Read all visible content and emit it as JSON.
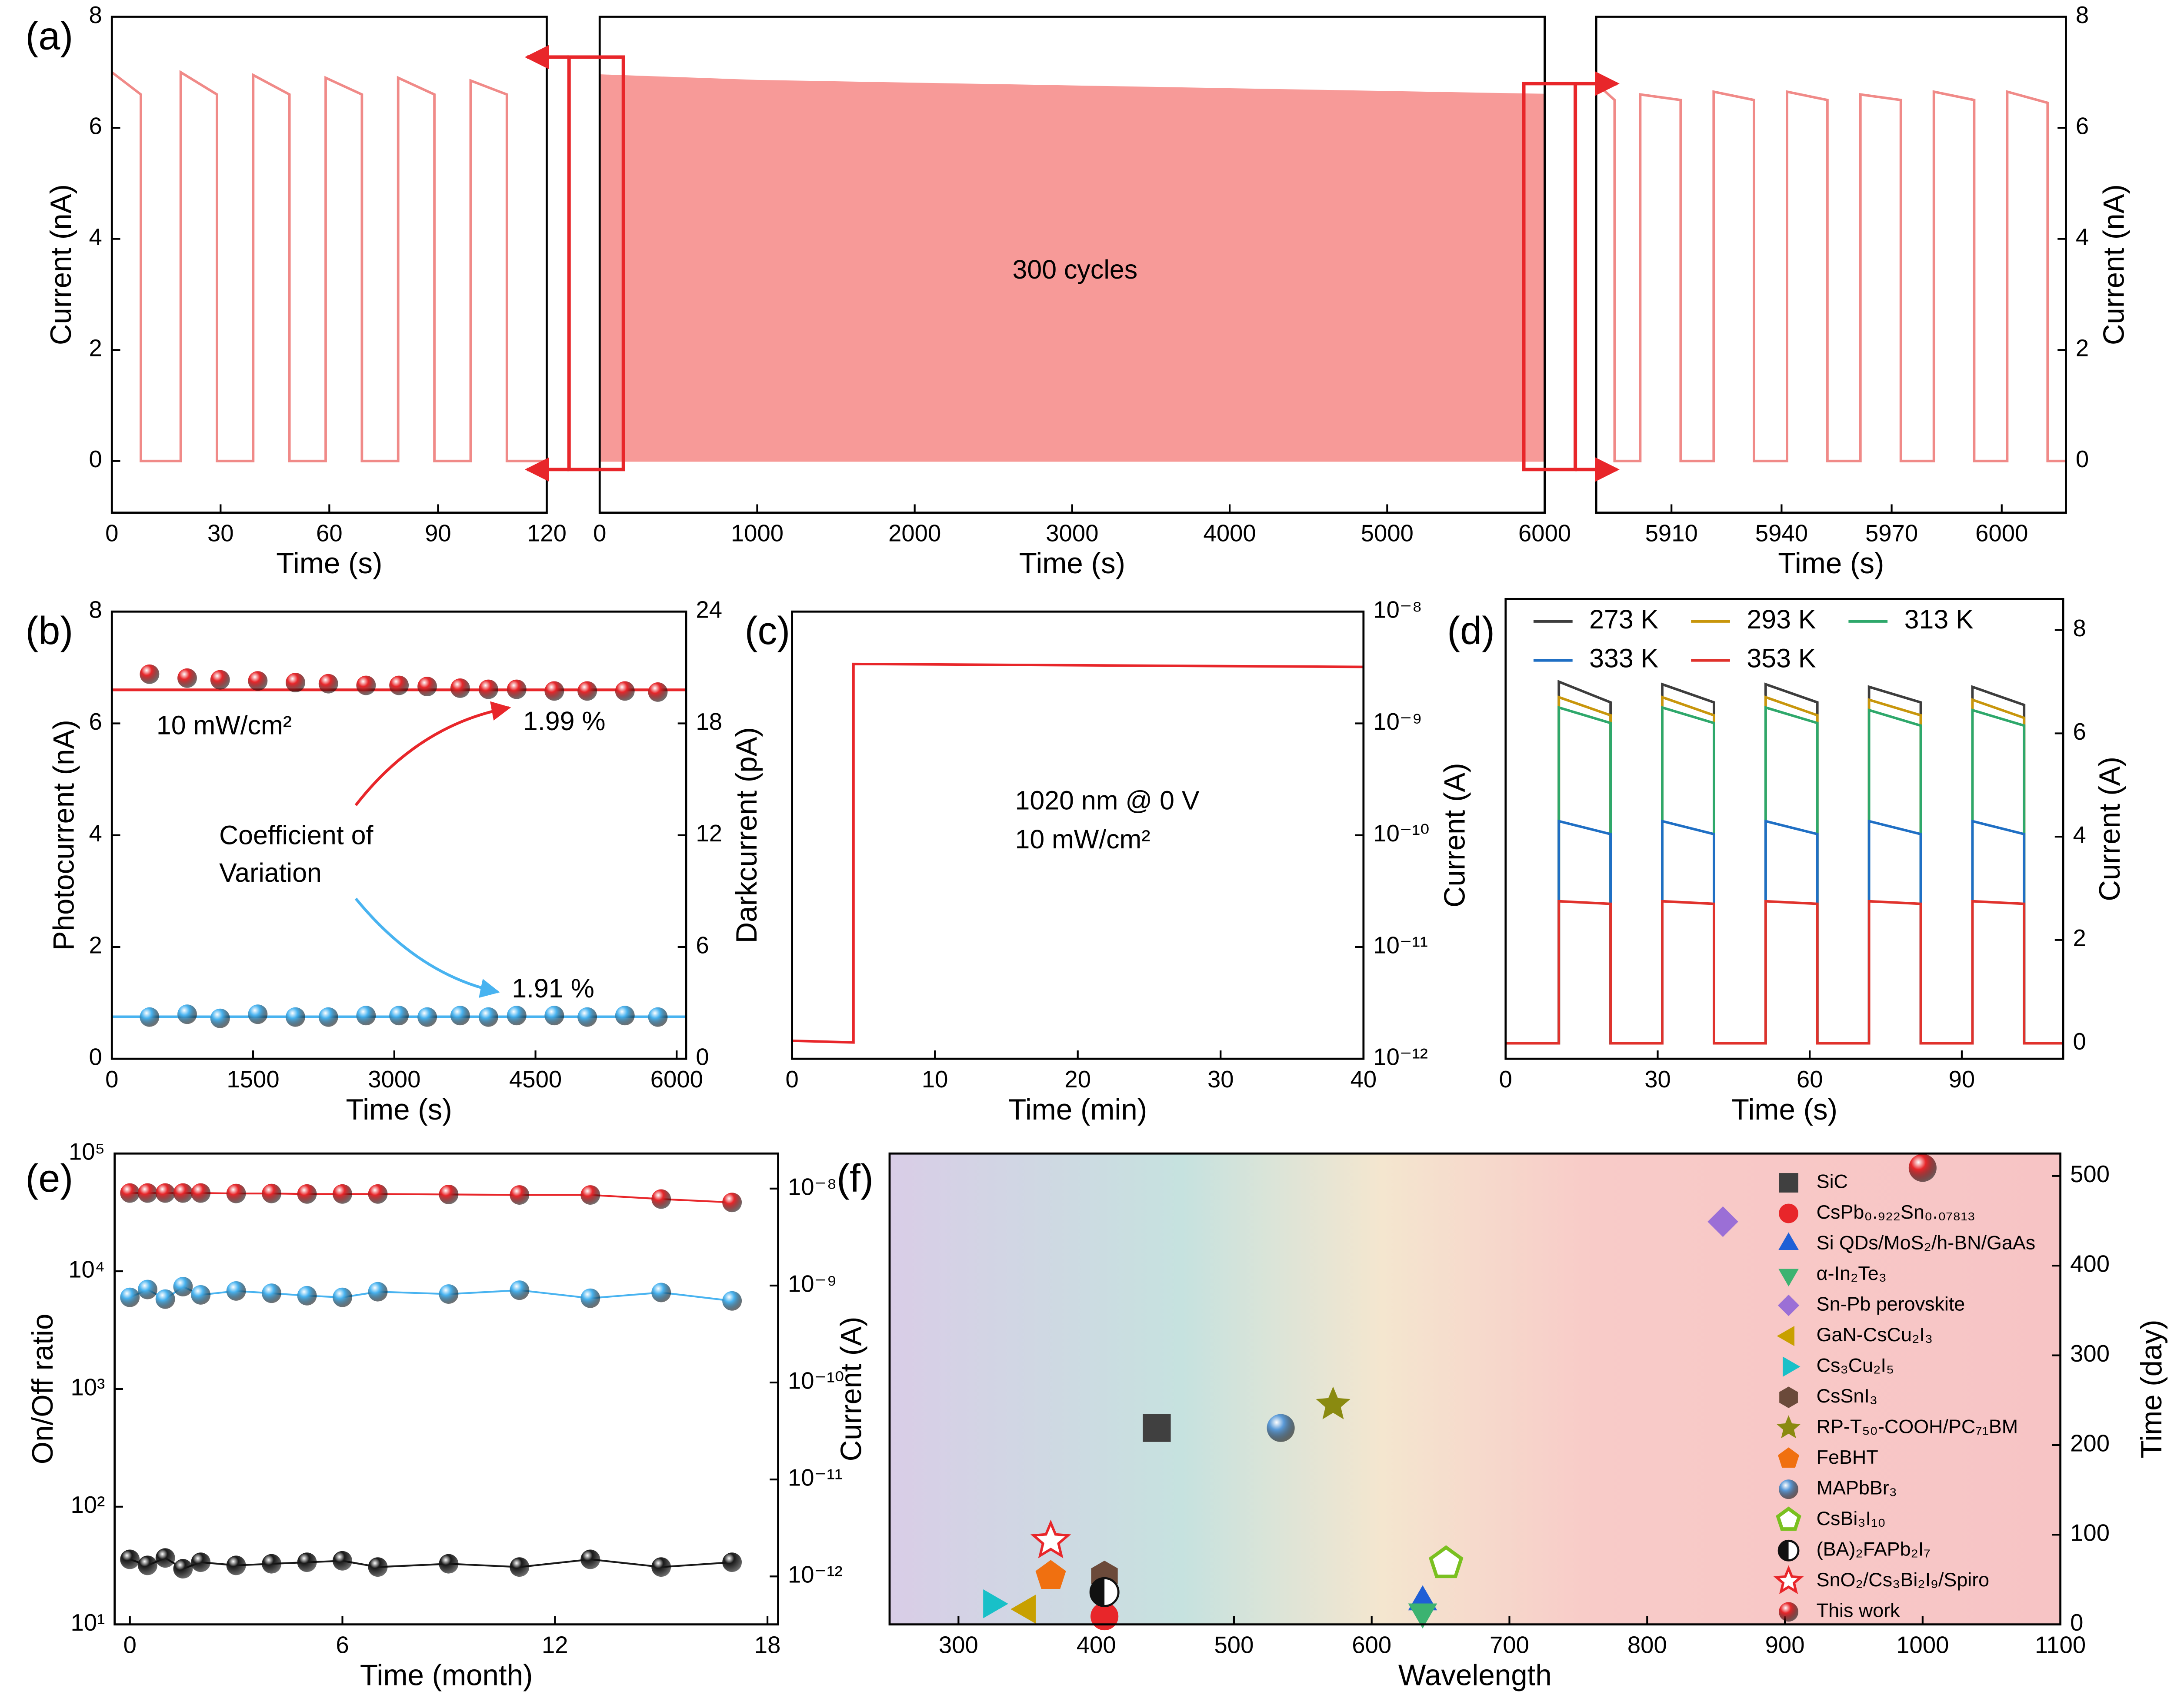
{
  "chart_data": [
    {
      "type": "line",
      "label": "(a)",
      "xlabel": "Time (s)",
      "ylabel": "Current (nA)",
      "yside": "left",
      "x": [
        0,
        8,
        8,
        19,
        19,
        29,
        29,
        39,
        39,
        49,
        49,
        59,
        59,
        69,
        69,
        79,
        79,
        89,
        89,
        99,
        99,
        109,
        109,
        120
      ],
      "series": [
        {
          "color": "#f08a88",
          "values": [
            7.0,
            6.6,
            0,
            0,
            7.0,
            6.6,
            0,
            0,
            6.95,
            6.6,
            0,
            0,
            6.9,
            6.6,
            0,
            0,
            6.9,
            6.6,
            0,
            0,
            6.85,
            6.6,
            0,
            0
          ]
        }
      ],
      "xlim": [
        0,
        120
      ],
      "ylim": [
        -0.93,
        8
      ],
      "xticks": [
        0,
        30,
        60,
        90,
        120
      ],
      "yticks": [
        0,
        2,
        4,
        6,
        8
      ]
    },
    {
      "type": "area",
      "xlabel": "Time (s)",
      "annotations": [
        {
          "text": "300 cycles"
        }
      ],
      "x": [
        0,
        1000,
        2000,
        3000,
        4000,
        5000,
        6000
      ],
      "series": [
        {
          "color": "#f79a98",
          "values": [
            6.95,
            6.85,
            6.8,
            6.75,
            6.7,
            6.65,
            6.6
          ]
        }
      ],
      "xlim": [
        0,
        6000
      ],
      "ylim": [
        -0.93,
        8
      ],
      "xticks": [
        0,
        1000,
        2000,
        3000,
        4000,
        5000,
        6000
      ]
    },
    {
      "type": "line",
      "xlabel": "Time (s)",
      "ylabel": "Current (nA)",
      "yside": "right",
      "x": [
        5889.5,
        5894.5,
        5894.5,
        5901.5,
        5901.5,
        5912.5,
        5912.5,
        5921.5,
        5921.5,
        5932.5,
        5932.5,
        5941.5,
        5941.5,
        5952.5,
        5952.5,
        5961.5,
        5961.5,
        5972.5,
        5972.5,
        5981.5,
        5981.5,
        5992.5,
        5992.5,
        6001.5,
        6001.5,
        6012.5,
        6012.5,
        6017.5
      ],
      "series": [
        {
          "color": "#f08a88",
          "values": [
            6.8,
            6.5,
            0,
            0,
            6.6,
            6.5,
            0,
            0,
            6.65,
            6.5,
            0,
            0,
            6.65,
            6.5,
            0,
            0,
            6.6,
            6.5,
            0,
            0,
            6.65,
            6.5,
            0,
            0,
            6.65,
            6.45,
            0,
            0
          ]
        }
      ],
      "xlim": [
        5889.5,
        6017.5
      ],
      "ylim": [
        -0.93,
        8
      ],
      "xticks": [
        5910,
        5940,
        5970,
        6000
      ],
      "yticks": [
        0,
        2,
        4,
        6,
        8
      ]
    },
    {
      "type": "scatter",
      "label": "(b)",
      "xlabel": "Time (s)",
      "ylabel": "Photocurrent (nA)",
      "y2label": "Darkcurrent (pA)",
      "yside": "left",
      "ycolor": "#e8262a",
      "y2color": "#48b3f0",
      "x": [
        400,
        800,
        1150,
        1550,
        1950,
        2300,
        2700,
        3050,
        3350,
        3700,
        4000,
        4300,
        4700,
        5050,
        5450,
        5800
      ],
      "series": [
        {
          "color": "#e8262a",
          "values": [
            6.88,
            6.81,
            6.78,
            6.76,
            6.73,
            6.71,
            6.68,
            6.68,
            6.66,
            6.63,
            6.61,
            6.61,
            6.58,
            6.58,
            6.58,
            6.56
          ]
        },
        {
          "color": "#48b3f0",
          "axis": "y2",
          "values": [
            2.24,
            2.39,
            2.17,
            2.39,
            2.24,
            2.24,
            2.32,
            2.32,
            2.24,
            2.32,
            2.24,
            2.32,
            2.32,
            2.24,
            2.32,
            2.24
          ]
        }
      ],
      "hlines": [
        {
          "value": 6.6,
          "color": "#e8262a"
        },
        {
          "value": 2.25,
          "axis": "y2",
          "color": "#48b3f0"
        }
      ],
      "annotations": [
        {
          "text": "10 mW/cm²"
        },
        {
          "text": "1.99 %",
          "color": "#e8262a"
        },
        {
          "text": "Coefficient of"
        },
        {
          "text": "Variation"
        },
        {
          "text": "1.91 %",
          "color": "#48b3f0"
        }
      ],
      "xlim": [
        0,
        6100
      ],
      "ylim": [
        0,
        8
      ],
      "y2lim": [
        0,
        24
      ],
      "xticks": [
        0,
        1500,
        3000,
        4500,
        6000
      ],
      "yticks": [
        0,
        2,
        4,
        6,
        8
      ],
      "y2ticks": [
        0,
        6,
        12,
        18,
        24
      ]
    },
    {
      "type": "line",
      "label": "(c)",
      "xlabel": "Time (min)",
      "ylabel": "Current (A)",
      "yside": "right",
      "ylog": true,
      "x": [
        0,
        4.3,
        4.3,
        40
      ],
      "series": [
        {
          "color": "#e8262a",
          "values": [
            1.45e-12,
            1.4e-12,
            3.4e-09,
            3.2e-09
          ]
        }
      ],
      "annotations": [
        {
          "text": "1020 nm @ 0 V"
        },
        {
          "text": "10 mW/cm²"
        }
      ],
      "xlim": [
        0,
        40
      ],
      "ylim": [
        1e-12,
        1e-08
      ],
      "xticks": [
        0,
        10,
        20,
        30,
        40
      ],
      "yticks": [
        {
          "value": 1e-12,
          "label": "10⁻¹²"
        },
        {
          "value": 1e-11,
          "label": "10⁻¹¹"
        },
        {
          "value": 1e-10,
          "label": "10⁻¹⁰"
        },
        {
          "value": 1e-09,
          "label": "10⁻⁹"
        },
        {
          "value": 1e-08,
          "label": "10⁻⁸"
        }
      ]
    },
    {
      "type": "line",
      "label": "(d)",
      "xlabel": "Time (s)",
      "ylabel": "Current (A)",
      "yside": "right",
      "legend": "upper left",
      "x": [
        0,
        10.5,
        10.5,
        20.7,
        20.7,
        30.9,
        30.9,
        41.1,
        41.1,
        51.3,
        51.3,
        61.5,
        61.5,
        71.7,
        71.7,
        81.9,
        81.9,
        92.1,
        92.1,
        102.3,
        102.3,
        110
      ],
      "series": [
        {
          "name": "273 K",
          "color": "#3d3d3d",
          "values": [
            0,
            0,
            7.0,
            6.6,
            0,
            0,
            6.95,
            6.6,
            0,
            0,
            6.95,
            6.6,
            0,
            0,
            6.9,
            6.6,
            0,
            0,
            6.9,
            6.55,
            0,
            0
          ]
        },
        {
          "name": "293 K",
          "color": "#c8960c",
          "values": [
            0,
            0,
            6.7,
            6.35,
            0,
            0,
            6.7,
            6.35,
            0,
            0,
            6.7,
            6.35,
            0,
            0,
            6.65,
            6.35,
            0,
            0,
            6.65,
            6.3,
            0,
            0
          ]
        },
        {
          "name": "313 K",
          "color": "#2ea86b",
          "values": [
            0,
            0,
            6.5,
            6.2,
            0,
            0,
            6.5,
            6.2,
            0,
            0,
            6.5,
            6.2,
            0,
            0,
            6.45,
            6.15,
            0,
            0,
            6.45,
            6.15,
            0,
            0
          ]
        },
        {
          "name": "333 K",
          "color": "#1f6fc4",
          "values": [
            0,
            0,
            4.3,
            4.05,
            0,
            0,
            4.3,
            4.05,
            0,
            0,
            4.3,
            4.05,
            0,
            0,
            4.3,
            4.05,
            0,
            0,
            4.3,
            4.05,
            0,
            0
          ]
        },
        {
          "name": "353 K",
          "color": "#e0322c",
          "values": [
            0,
            0,
            2.75,
            2.7,
            0,
            0,
            2.75,
            2.7,
            0,
            0,
            2.75,
            2.7,
            0,
            0,
            2.75,
            2.7,
            0,
            0,
            2.75,
            2.7,
            0,
            0
          ]
        }
      ],
      "xlim": [
        0,
        110
      ],
      "ylim": [
        -0.3,
        8.6
      ],
      "xticks": [
        0,
        30,
        60,
        90
      ],
      "yticks": [
        0,
        2,
        4,
        6,
        8
      ]
    },
    {
      "type": "line",
      "markers": true,
      "label": "(e)",
      "xlabel": "Time (month)",
      "ylabel": "On/Off ratio",
      "y2label": "Current (A)",
      "yside": "left",
      "ylog": true,
      "y2log": true,
      "ycolor": "#48b3f0",
      "x": [
        0,
        0.5,
        1,
        1.5,
        2,
        3,
        4,
        5,
        6,
        7,
        9,
        11,
        13,
        15,
        17
      ],
      "series": [
        {
          "color": "#e8262a",
          "axis": "y2",
          "values": [
            9e-09,
            9e-09,
            9e-09,
            9e-09,
            9e-09,
            8.9e-09,
            8.9e-09,
            8.8e-09,
            8.8e-09,
            8.8e-09,
            8.7e-09,
            8.6e-09,
            8.6e-09,
            7.8e-09,
            7.2e-09
          ]
        },
        {
          "color": "#48b3f0",
          "values": [
            6000,
            7000,
            5800,
            7400,
            6300,
            6800,
            6500,
            6200,
            6000,
            6700,
            6400,
            6900,
            5900,
            6600,
            5600
          ]
        },
        {
          "color": "#1a1a1a",
          "axis": "y2",
          "values": [
            1.5e-12,
            1.3e-12,
            1.55e-12,
            1.2e-12,
            1.4e-12,
            1.3e-12,
            1.35e-12,
            1.4e-12,
            1.45e-12,
            1.25e-12,
            1.35e-12,
            1.25e-12,
            1.5e-12,
            1.25e-12,
            1.4e-12
          ]
        }
      ],
      "xlim": [
        -0.43,
        18.3
      ],
      "ylim": [
        10,
        100000
      ],
      "y2lim": [
        3.2e-13,
        2.3e-08
      ],
      "xticks": [
        0,
        6,
        12,
        18
      ],
      "yticks": [
        {
          "value": 10,
          "label": "10¹"
        },
        {
          "value": 100,
          "label": "10²"
        },
        {
          "value": 1000,
          "label": "10³"
        },
        {
          "value": 10000,
          "label": "10⁴"
        },
        {
          "value": 100000,
          "label": "10⁵"
        }
      ],
      "y2ticks": [
        {
          "value": 1e-12,
          "label": "10⁻¹²"
        },
        {
          "value": 1e-11,
          "label": "10⁻¹¹"
        },
        {
          "value": 1e-10,
          "label": "10⁻¹⁰"
        },
        {
          "value": 1e-09,
          "label": "10⁻⁹"
        },
        {
          "value": 1e-08,
          "label": "10⁻⁸"
        }
      ]
    },
    {
      "type": "scatter",
      "label": "(f)",
      "xlabel": "Wavelength",
      "ylabel": "Time (day)",
      "yside": "right",
      "legend": "upper right",
      "series": [
        {
          "name": "SiC",
          "color": "#404040",
          "marker": "square",
          "x": [
            444
          ],
          "values": [
            219
          ]
        },
        {
          "name": "CsPb₀.₉₂₂Sn₀.₀₇₈₁₃",
          "color": "#e8262a",
          "marker": "circle",
          "x": [
            406
          ],
          "values": [
            9
          ]
        },
        {
          "name": "Si QDs/MoS₂/h-BN/GaAs",
          "color": "#1f5fd6",
          "marker": "triangle-up",
          "x": [
            637
          ],
          "values": [
            25
          ]
        },
        {
          "name": "α-In₂Te₃",
          "color": "#3cb371",
          "marker": "triangle-down",
          "x": [
            637
          ],
          "values": [
            14
          ]
        },
        {
          "name": "Sn-Pb perovskite",
          "color": "#9b6fd6",
          "marker": "diamond",
          "x": [
            855
          ],
          "values": [
            449
          ]
        },
        {
          "name": "GaN-CsCu₂I₃",
          "color": "#c8a000",
          "marker": "triangle-left",
          "x": [
            350
          ],
          "values": [
            17
          ]
        },
        {
          "name": "Cs₃Cu₂I₅",
          "color": "#18c0c8",
          "marker": "triangle-right",
          "x": [
            324
          ],
          "values": [
            23
          ]
        },
        {
          "name": "CsSnI₃",
          "color": "#6b4a3a",
          "marker": "hexagon",
          "x": [
            406
          ],
          "values": [
            54
          ]
        },
        {
          "name": "RP-T₅₀-COOH/PC₇₁BM",
          "color": "#8a8a10",
          "marker": "star",
          "x": [
            572
          ],
          "values": [
            245
          ]
        },
        {
          "name": "FeBHT",
          "color": "#f07010",
          "marker": "pentagon",
          "x": [
            367
          ],
          "values": [
            54
          ]
        },
        {
          "name": "MAPbBr₃",
          "color": "#5a9ad8",
          "marker": "sphere",
          "x": [
            534
          ],
          "values": [
            219
          ]
        },
        {
          "name": "CsBi₃I₁₀",
          "color": "#7ac020",
          "marker": "pentagon-open",
          "x": [
            654
          ],
          "values": [
            68
          ]
        },
        {
          "name": "(BA)₂FAPb₂I₇",
          "color": "#111111",
          "marker": "half-circle",
          "x": [
            406
          ],
          "values": [
            36
          ]
        },
        {
          "name": "SnO₂/Cs₃Bi₂I₉/Spiro",
          "color": "#e8262a",
          "marker": "star-open",
          "x": [
            367
          ],
          "values": [
            93
          ]
        },
        {
          "name": "This work",
          "color": "#e8262a",
          "marker": "sphere",
          "x": [
            1000
          ],
          "values": [
            509
          ]
        }
      ],
      "xlim": [
        250,
        1100
      ],
      "ylim": [
        0,
        525
      ],
      "xticks": [
        300,
        400,
        500,
        600,
        700,
        800,
        900,
        1000,
        1100
      ],
      "yticks": [
        0,
        100,
        200,
        300,
        400,
        500
      ]
    }
  ]
}
